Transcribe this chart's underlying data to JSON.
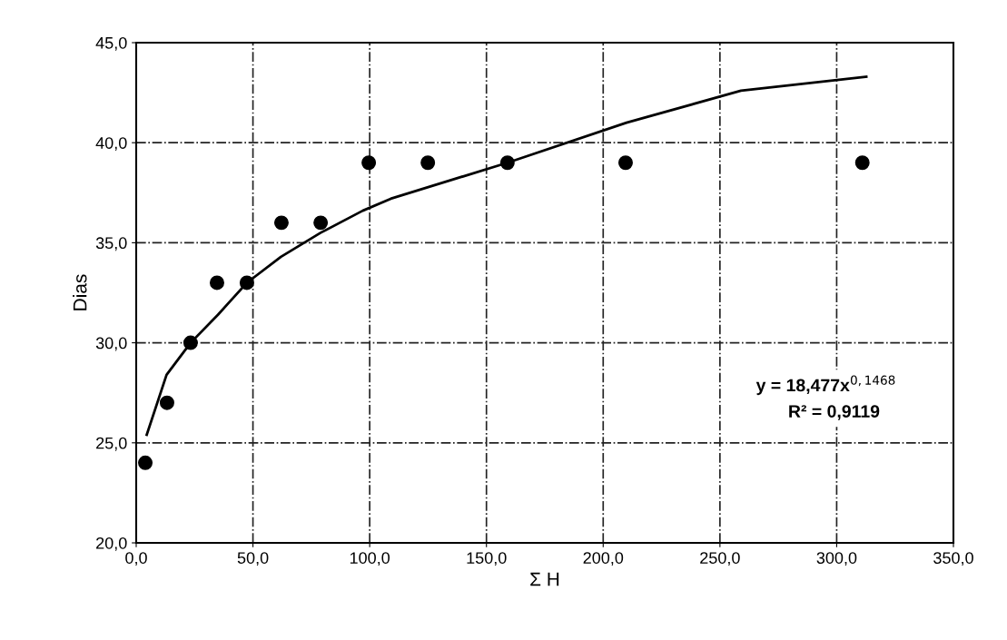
{
  "chart_data": {
    "type": "scatter",
    "xlabel": "Σ H",
    "ylabel": "Dias",
    "series": [
      {
        "color": "#000000",
        "marker": "circle",
        "x": [
          3.9,
          13.2,
          23.3,
          34.6,
          47.4,
          62.2,
          79,
          99.6,
          124.9,
          159,
          209.6,
          311
        ],
        "values": [
          24,
          27,
          30,
          33,
          33,
          36,
          36,
          39,
          39,
          39,
          39,
          39
        ]
      },
      {
        "type": "line",
        "color": "#000000",
        "marker": "none",
        "line_style": "solid",
        "x": [
          4.5,
          13,
          23.3,
          35,
          47.4,
          62,
          79,
          97,
          109,
          159,
          210,
          259,
          312.7
        ],
        "values": [
          25.4,
          28.4,
          30,
          31.4,
          33,
          34.3,
          35.5,
          36.6,
          37.2,
          39,
          41.0,
          42.6,
          43.3
        ]
      }
    ],
    "xlim": [
      0,
      350
    ],
    "ylim": [
      20,
      45
    ],
    "xticks": [
      {
        "value": 0,
        "label": "0,0"
      },
      {
        "value": 50,
        "label": "50,0"
      },
      {
        "value": 100,
        "label": "100,0"
      },
      {
        "value": 150,
        "label": "150,0"
      },
      {
        "value": 200,
        "label": "200,0"
      },
      {
        "value": 250,
        "label": "250,0"
      },
      {
        "value": 300,
        "label": "300,0"
      },
      {
        "value": 350,
        "label": "350,0"
      }
    ],
    "yticks": [
      {
        "value": 20,
        "label": "20,0"
      },
      {
        "value": 25,
        "label": "25,0"
      },
      {
        "value": 30,
        "label": "30,0"
      },
      {
        "value": 35,
        "label": "35,0"
      },
      {
        "value": 40,
        "label": "40,0"
      },
      {
        "value": 45,
        "label": "45,0"
      }
    ],
    "grid": true,
    "legend": false,
    "annotations": [
      "y = 18,477x$^{0,1468}$",
      "R² = 0,9119"
    ]
  }
}
